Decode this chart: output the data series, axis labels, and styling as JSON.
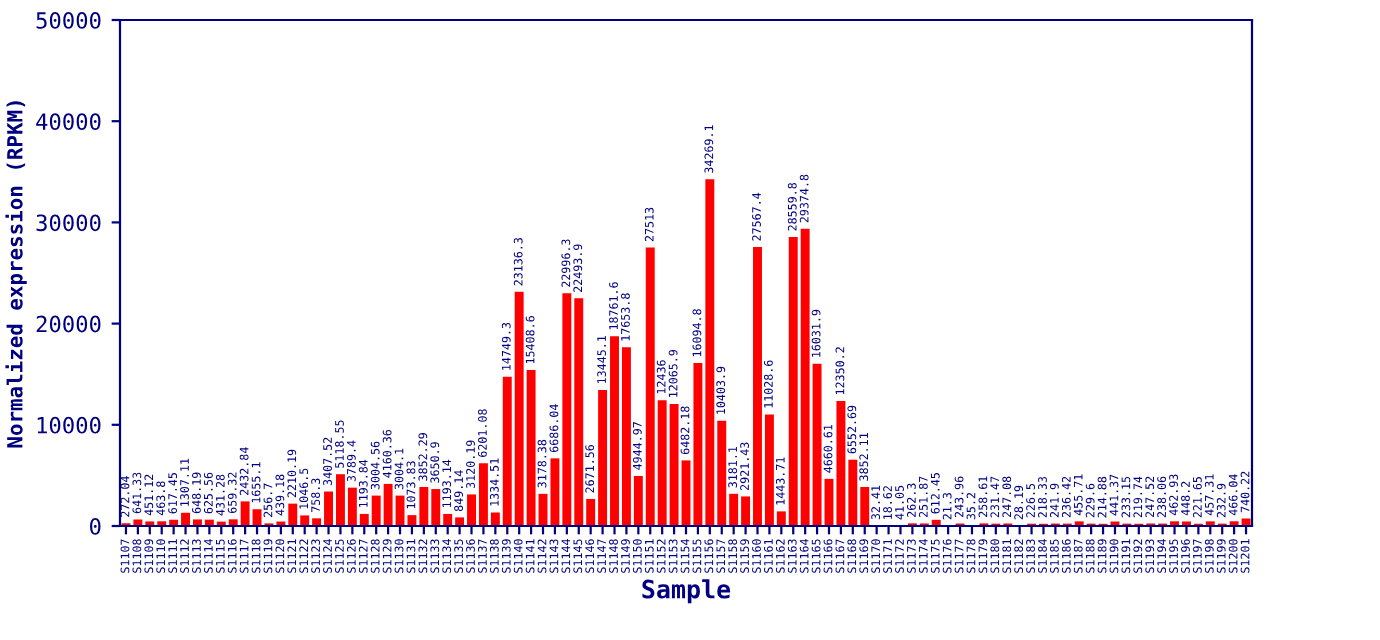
{
  "chart_data": {
    "type": "bar",
    "xlabel": "Sample",
    "ylabel": "Normalized expression (RPKM)",
    "categories": [
      "S1107",
      "S1108",
      "S1109",
      "S1110",
      "S1111",
      "S1112",
      "S1113",
      "S1114",
      "S1115",
      "S1116",
      "S1117",
      "S1118",
      "S1119",
      "S1120",
      "S1121",
      "S1122",
      "S1123",
      "S1124",
      "S1125",
      "S1126",
      "S1127",
      "S1128",
      "S1129",
      "S1130",
      "S1131",
      "S1132",
      "S1133",
      "S1134",
      "S1135",
      "S1136",
      "S1137",
      "S1138",
      "S1139",
      "S1140",
      "S1141",
      "S1142",
      "S1143",
      "S1144",
      "S1145",
      "S1146",
      "S1147",
      "S1148",
      "S1149",
      "S1150",
      "S1151",
      "S1152",
      "S1153",
      "S1154",
      "S1155",
      "S1156",
      "S1157",
      "S1158",
      "S1159",
      "S1160",
      "S1161",
      "S1162",
      "S1163",
      "S1164",
      "S1165",
      "S1166",
      "S1167",
      "S1168",
      "S1169",
      "S1170",
      "S1171",
      "S1172",
      "S1173",
      "S1174",
      "S1175",
      "S1176",
      "S1177",
      "S1178",
      "S1179",
      "S1180",
      "S1181",
      "S1182",
      "S1183",
      "S1184",
      "S1185",
      "S1186",
      "S1187",
      "S1188",
      "S1189",
      "S1190",
      "S1191",
      "S1192",
      "S1193",
      "S1194",
      "S1195",
      "S1196",
      "S1197",
      "S1198",
      "S1199",
      "S1200",
      "S1201"
    ],
    "values": [
      272.04,
      641.33,
      451.12,
      463.8,
      617.45,
      1307.11,
      648.19,
      625.56,
      431.28,
      659.32,
      2432.84,
      1655.1,
      256.7,
      439.18,
      2210.19,
      1046.5,
      758.3,
      3407.52,
      5118.55,
      3789.4,
      1193.84,
      3004.56,
      4160.36,
      3004.1,
      1073.83,
      3852.29,
      3650.9,
      1193.14,
      849.14,
      3120.19,
      6201.08,
      1334.51,
      14749.3,
      23136.3,
      15408.6,
      3178.38,
      6686.04,
      22996.3,
      22493.9,
      2671.56,
      13445.1,
      18761.6,
      17653.8,
      4944.97,
      27513,
      12436,
      12065.9,
      6482.18,
      16094.8,
      34269.1,
      10403.9,
      3181.1,
      2921.43,
      27567.4,
      11028.6,
      1443.71,
      28559.8,
      29374.8,
      16031.9,
      4660.61,
      12350.2,
      6552.69,
      3852.11,
      32.41,
      18.62,
      41.05,
      262.3,
      251.87,
      612.45,
      21.3,
      243.96,
      35.2,
      258.61,
      231.47,
      247.08,
      28.19,
      226.5,
      218.33,
      241.9,
      236.42,
      455.71,
      229.6,
      214.88,
      441.37,
      233.15,
      219.74,
      247.52,
      238.06,
      462.93,
      448.2,
      221.65,
      457.31,
      232.9,
      466.04,
      740.22
    ],
    "color": "#ff0000",
    "ylim": [
      0,
      50000
    ],
    "yticks": [
      0,
      10000,
      20000,
      30000,
      40000,
      50000
    ],
    "data_labels": true,
    "grid": false,
    "legend": false
  }
}
